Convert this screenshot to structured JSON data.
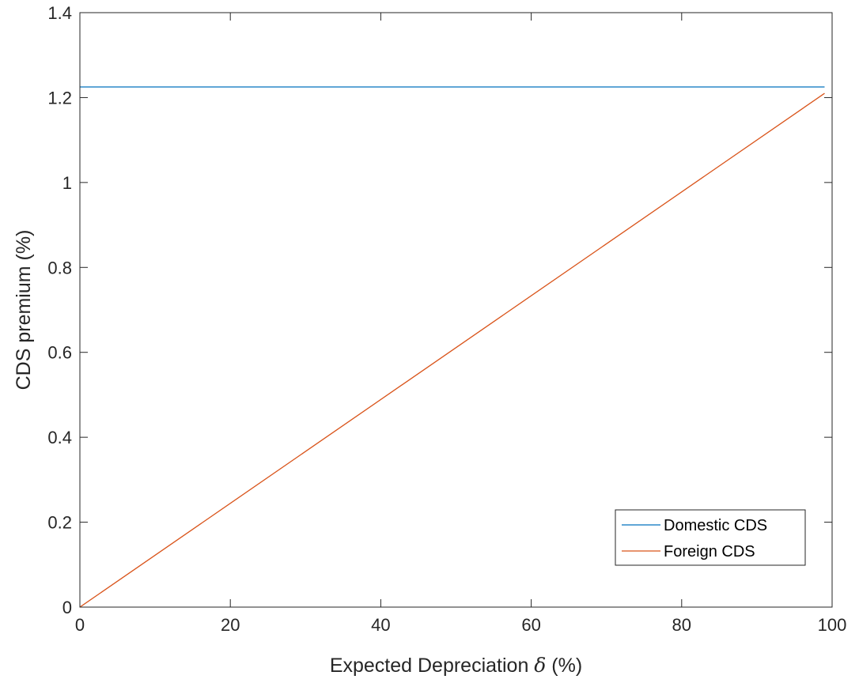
{
  "chart_data": {
    "type": "line",
    "title": "",
    "xlabel_prefix": "Expected Depreciation ",
    "xlabel_symbol": "δ",
    "xlabel_suffix": " (%)",
    "ylabel": "CDS premium (%)",
    "xlim": [
      0,
      100
    ],
    "ylim": [
      0,
      1.4
    ],
    "xticks": [
      0,
      20,
      40,
      60,
      80,
      100
    ],
    "xtick_labels": [
      "0",
      "20",
      "40",
      "60",
      "80",
      "100"
    ],
    "yticks": [
      0,
      0.2,
      0.4,
      0.6,
      0.8,
      1.0,
      1.2,
      1.4
    ],
    "ytick_labels": [
      "0",
      "0.2",
      "0.4",
      "0.6",
      "0.8",
      "1",
      "1.2",
      "1.4"
    ],
    "grid": false,
    "legend_position": "bottom-right",
    "series": [
      {
        "name": "Domestic CDS",
        "color": "#0072BD",
        "x": [
          0,
          99
        ],
        "y": [
          1.225,
          1.225
        ]
      },
      {
        "name": "Foreign CDS",
        "color": "#D95319",
        "x": [
          0,
          99
        ],
        "y": [
          0,
          1.21
        ]
      }
    ]
  }
}
